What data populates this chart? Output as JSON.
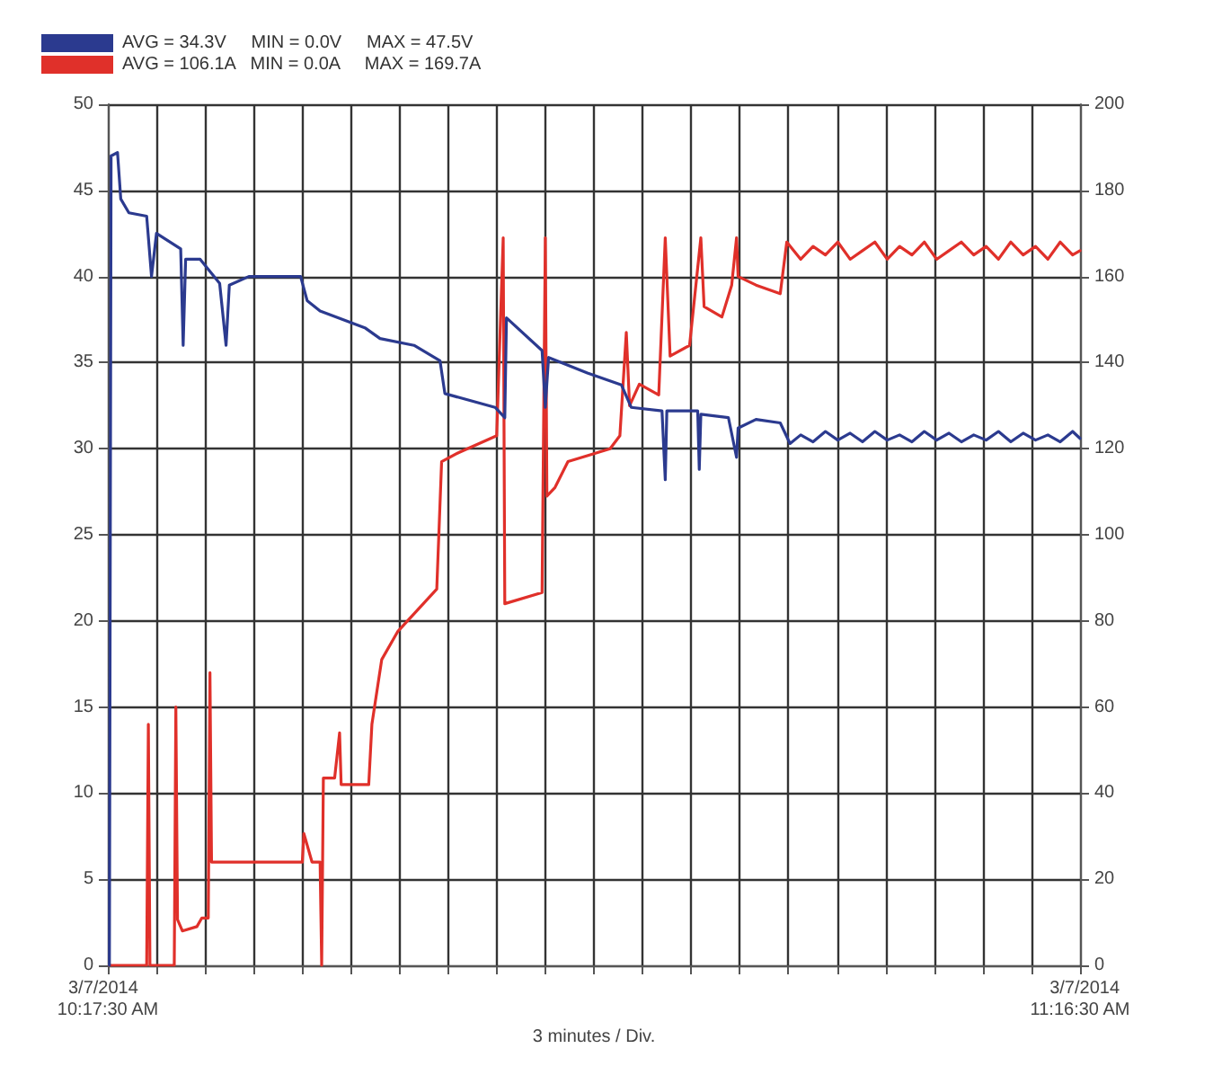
{
  "chart_data": {
    "type": "line",
    "xlabel": "3 minutes / Div.",
    "annotations": [
      "3/7/2014",
      "3/7/2014"
    ],
    "legend": "top left",
    "grid": true,
    "marker": "none",
    "line_style": "solid",
    "xlim": [
      10.2917,
      11.275
    ],
    "xticks": [
      {
        "value": 10.2917,
        "label": "10:17:30 AM"
      },
      {
        "value": 10.3409,
        "label": null
      },
      {
        "value": 10.39,
        "label": null
      },
      {
        "value": 10.4392,
        "label": null
      },
      {
        "value": 10.4884,
        "label": null
      },
      {
        "value": 10.5375,
        "label": null
      },
      {
        "value": 10.5867,
        "label": null
      },
      {
        "value": 10.6359,
        "label": null
      },
      {
        "value": 10.685,
        "label": null
      },
      {
        "value": 10.7342,
        "label": null
      },
      {
        "value": 10.7834,
        "label": null
      },
      {
        "value": 10.8325,
        "label": null
      },
      {
        "value": 10.8817,
        "label": null
      },
      {
        "value": 10.9309,
        "label": null
      },
      {
        "value": 10.98,
        "label": null
      },
      {
        "value": 11.0292,
        "label": null
      },
      {
        "value": 11.0784,
        "label": null
      },
      {
        "value": 11.1275,
        "label": null
      },
      {
        "value": 11.1767,
        "label": null
      },
      {
        "value": 11.2259,
        "label": null
      },
      {
        "value": 11.275,
        "label": "11:16:30 AM"
      }
    ],
    "ylim": [
      0,
      50
    ],
    "yticks": [
      0,
      5,
      10,
      15,
      20,
      25,
      30,
      35,
      40,
      45,
      50
    ],
    "y2lim": [
      0,
      200
    ],
    "y2ticks": [
      0,
      20,
      40,
      60,
      80,
      100,
      120,
      140,
      160,
      180,
      200
    ],
    "series": [
      {
        "name": "AVG = 34.3V     MIN = 0.0V     MAX = 47.5V",
        "color": "#2b3a8f",
        "x": [
          10.2933,
          10.295,
          10.3015,
          10.3048,
          10.313,
          10.331,
          10.3359,
          10.3409,
          10.3654,
          10.3679,
          10.3704,
          10.3851,
          10.4048,
          10.4113,
          10.4146,
          10.4343,
          10.4867,
          10.4933,
          10.5064,
          10.5523,
          10.567,
          10.6014,
          10.6277,
          10.6326,
          10.6834,
          10.6932,
          10.6949,
          10.7309,
          10.7342,
          10.7375,
          10.7768,
          10.8112,
          10.8211,
          10.8522,
          10.8555,
          10.8571,
          10.8883,
          10.8899,
          10.8915,
          10.9194,
          10.9276,
          10.9292,
          10.9473,
          10.9718,
          10.9817,
          10.9925,
          11.005,
          11.0175,
          11.03,
          11.0425,
          11.055,
          11.0675,
          11.08,
          11.0925,
          11.105,
          11.1175,
          11.13,
          11.1425,
          11.155,
          11.1675,
          11.18,
          11.1925,
          11.205,
          11.2175,
          11.23,
          11.2425,
          11.255,
          11.2675,
          11.275
        ],
        "values": [
          0,
          47,
          47.2,
          44.5,
          43.7,
          43.5,
          40,
          42.5,
          41.6,
          36,
          41,
          41,
          39.6,
          36,
          39.5,
          40,
          40,
          38.6,
          38,
          37,
          36.4,
          36,
          35.1,
          33.2,
          32.4,
          31.8,
          37.6,
          35.7,
          32.4,
          35.3,
          34.4,
          33.7,
          32.4,
          32.2,
          28.2,
          32.2,
          32.2,
          28.8,
          32,
          31.8,
          29.5,
          31.2,
          31.7,
          31.5,
          30.3,
          30.8,
          30.4,
          31.0,
          30.5,
          30.9,
          30.4,
          31.0,
          30.5,
          30.8,
          30.4,
          31.0,
          30.5,
          30.9,
          30.4,
          30.8,
          30.5,
          31.0,
          30.4,
          30.9,
          30.5,
          30.8,
          30.4,
          31.0,
          30.6
        ]
      },
      {
        "name": "AVG = 106.1A   MIN = 0.0A     MAX = 169.7A",
        "color": "#e0302a",
        "axis": "y2",
        "x": [
          10.2933,
          10.331,
          10.3327,
          10.3343,
          10.3589,
          10.3605,
          10.3622,
          10.3671,
          10.3818,
          10.3868,
          10.3933,
          10.395,
          10.3966,
          10.4884,
          10.49,
          10.4982,
          10.5064,
          10.508,
          10.5097,
          10.5211,
          10.5261,
          10.5277,
          10.5556,
          10.5588,
          10.5687,
          10.5851,
          10.6244,
          10.6293,
          10.6457,
          10.685,
          10.6916,
          10.6932,
          10.7309,
          10.7342,
          10.7358,
          10.744,
          10.7571,
          10.7997,
          10.8096,
          10.8161,
          10.8194,
          10.8293,
          10.8489,
          10.8555,
          10.8604,
          10.8801,
          10.8915,
          10.8948,
          10.9128,
          10.9227,
          10.9276,
          10.9292,
          10.9473,
          10.9718,
          10.9784,
          10.9925,
          11.005,
          11.0175,
          11.03,
          11.0425,
          11.055,
          11.0675,
          11.08,
          11.0925,
          11.105,
          11.1175,
          11.13,
          11.1425,
          11.155,
          11.1675,
          11.18,
          11.1925,
          11.205,
          11.2175,
          11.23,
          11.2425,
          11.255,
          11.2675,
          11.275
        ],
        "values": [
          0,
          0,
          56,
          0,
          0,
          60,
          10.6,
          8,
          9,
          11,
          11,
          68,
          24,
          24,
          30.6,
          24,
          24,
          0,
          43.5,
          43.5,
          54,
          42,
          42,
          56,
          71,
          77.6,
          87.4,
          117,
          119,
          123,
          169,
          84,
          86.6,
          169,
          109,
          111,
          117,
          120,
          123,
          147,
          130,
          135,
          132.5,
          169,
          141.5,
          144,
          169,
          153,
          150.6,
          158,
          169,
          160,
          158,
          156,
          168,
          164,
          167,
          165,
          168,
          164,
          166,
          168,
          164,
          167,
          165,
          168,
          164,
          166,
          168,
          165,
          167,
          164,
          168,
          165,
          167,
          164,
          168,
          165,
          166
        ]
      }
    ]
  }
}
